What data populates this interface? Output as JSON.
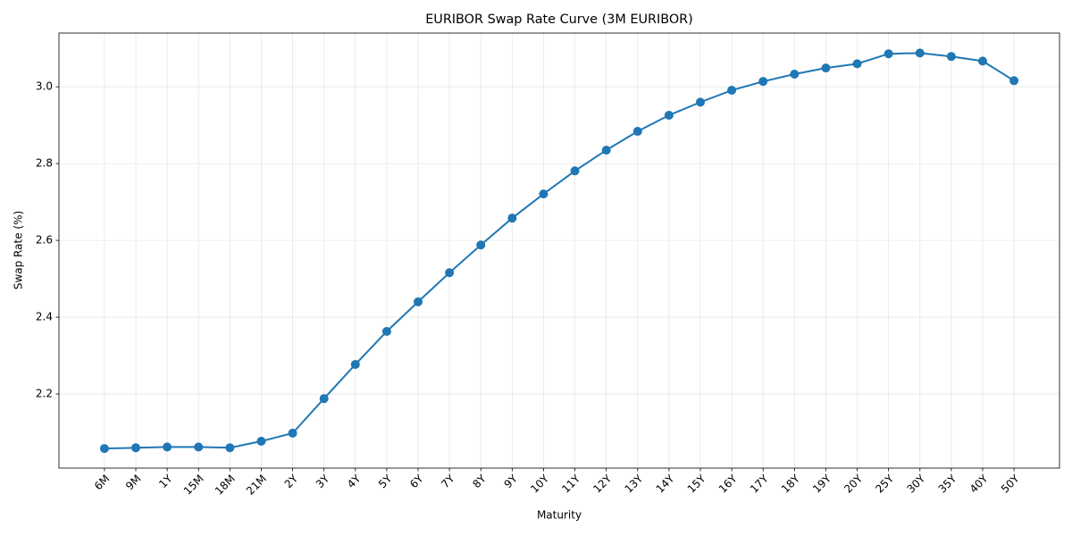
{
  "chart_data": {
    "type": "line",
    "title": "EURIBOR Swap Rate Curve (3M EURIBOR)",
    "x_label": "Maturity",
    "y_label": "Swap Rate (%)",
    "categories": [
      "6M",
      "9M",
      "1Y",
      "15M",
      "18M",
      "21M",
      "2Y",
      "3Y",
      "4Y",
      "5Y",
      "6Y",
      "7Y",
      "8Y",
      "9Y",
      "10Y",
      "11Y",
      "12Y",
      "13Y",
      "14Y",
      "15Y",
      "16Y",
      "17Y",
      "18Y",
      "19Y",
      "20Y",
      "25Y",
      "30Y",
      "35Y",
      "40Y",
      "50Y"
    ],
    "series": [
      {
        "name": "Swap Rate",
        "color": "#1f77b4",
        "values": [
          2.058,
          2.06,
          2.062,
          2.062,
          2.06,
          2.077,
          2.098,
          2.188,
          2.277,
          2.363,
          2.44,
          2.516,
          2.588,
          2.658,
          2.721,
          2.781,
          2.835,
          2.884,
          2.926,
          2.96,
          2.991,
          3.014,
          3.033,
          3.049,
          3.06,
          3.086,
          3.088,
          3.079,
          3.067,
          3.016
        ]
      }
    ],
    "ylim": [
      2.007,
      3.14
    ],
    "yticks": [
      2.2,
      2.4,
      2.6,
      2.8,
      {
        "value": 3,
        "label": "3.0"
      }
    ],
    "grid": true
  }
}
